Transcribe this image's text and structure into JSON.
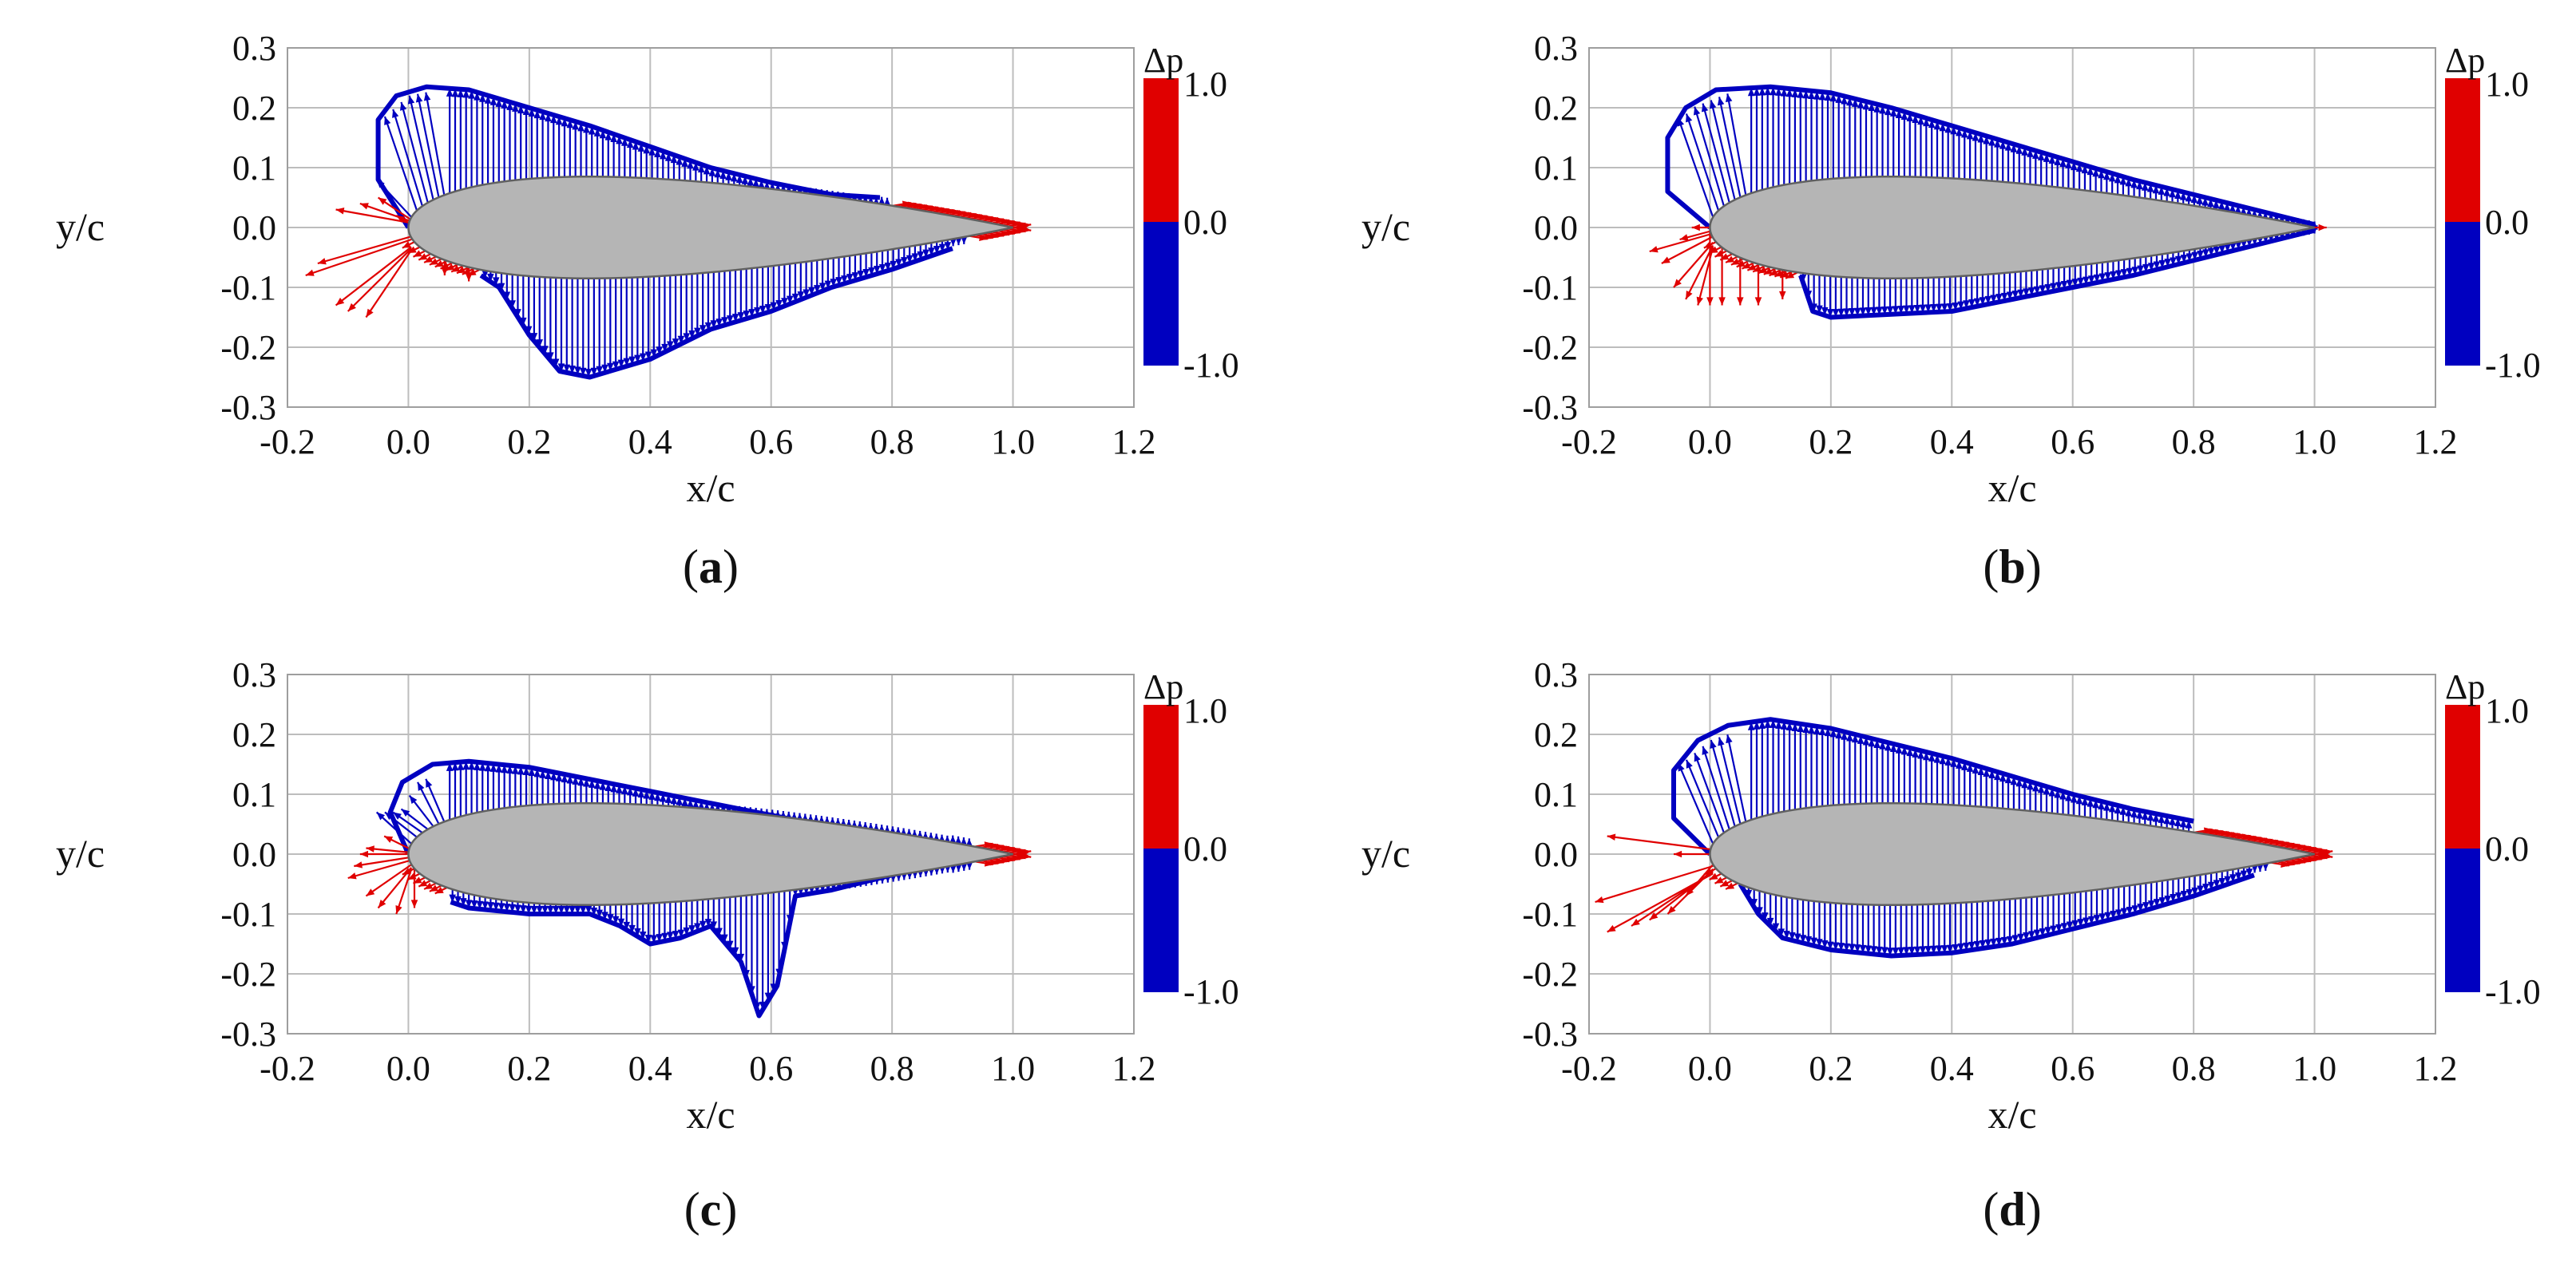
{
  "chart_data": [
    {
      "type": "vector-field",
      "panel_label": "a",
      "xlabel": "x/c",
      "ylabel": "y/c",
      "xlim": [
        -0.2,
        1.2
      ],
      "ylim": [
        -0.3,
        0.3
      ],
      "xticks": [
        "-0.2",
        "0.0",
        "0.2",
        "0.4",
        "0.6",
        "0.8",
        "1.0",
        "1.2"
      ],
      "yticks": [
        "0.3",
        "0.2",
        "0.1",
        "0.0",
        "-0.1",
        "-0.2",
        "-0.3"
      ],
      "grid": true,
      "colorbar": {
        "title": "Δp",
        "max_label": "1.0",
        "mid_label": "0.0",
        "min_label": "-1.0",
        "positive_color": "#e00000",
        "negative_color": "#0000c0"
      },
      "upper_envelope": [
        [
          0.0,
          0.0
        ],
        [
          -0.05,
          0.08
        ],
        [
          -0.05,
          0.18
        ],
        [
          -0.02,
          0.22
        ],
        [
          0.03,
          0.235
        ],
        [
          0.1,
          0.23
        ],
        [
          0.2,
          0.2
        ],
        [
          0.3,
          0.17
        ],
        [
          0.4,
          0.135
        ],
        [
          0.5,
          0.1
        ],
        [
          0.6,
          0.075
        ],
        [
          0.7,
          0.055
        ],
        [
          0.78,
          0.05
        ]
      ],
      "lower_envelope": [
        [
          0.12,
          -0.08
        ],
        [
          0.15,
          -0.1
        ],
        [
          0.2,
          -0.18
        ],
        [
          0.25,
          -0.24
        ],
        [
          0.3,
          -0.25
        ],
        [
          0.4,
          -0.22
        ],
        [
          0.5,
          -0.17
        ],
        [
          0.6,
          -0.14
        ],
        [
          0.7,
          -0.1
        ],
        [
          0.8,
          -0.07
        ],
        [
          0.9,
          -0.035
        ]
      ],
      "positive_zones": {
        "leading_edge_fan": [
          [
            -0.17,
            -0.08
          ],
          [
            -0.15,
            -0.06
          ],
          [
            -0.12,
            -0.13
          ],
          [
            -0.1,
            -0.14
          ],
          [
            -0.07,
            -0.15
          ],
          [
            -0.12,
            0.03
          ],
          [
            -0.08,
            0.04
          ],
          [
            -0.05,
            0.05
          ],
          [
            -0.02,
            0.02
          ],
          [
            0.06,
            -0.08
          ],
          [
            0.1,
            -0.09
          ]
        ],
        "trailing_edge_upper": [
          0.8,
          1.0
        ],
        "trailing_edge_lower": [
          0.92,
          1.0
        ]
      }
    },
    {
      "type": "vector-field",
      "panel_label": "b",
      "xlabel": "x/c",
      "ylabel": "y/c",
      "xlim": [
        -0.2,
        1.2
      ],
      "ylim": [
        -0.3,
        0.3
      ],
      "xticks": [
        "-0.2",
        "0.0",
        "0.2",
        "0.4",
        "0.6",
        "0.8",
        "1.0",
        "1.2"
      ],
      "yticks": [
        "0.3",
        "0.2",
        "0.1",
        "0.0",
        "-0.1",
        "-0.2",
        "-0.3"
      ],
      "grid": true,
      "colorbar": {
        "title": "Δp",
        "max_label": "1.0",
        "mid_label": "0.0",
        "min_label": "-1.0",
        "positive_color": "#e00000",
        "negative_color": "#0000c0"
      },
      "upper_envelope": [
        [
          0.0,
          0.0
        ],
        [
          -0.07,
          0.06
        ],
        [
          -0.07,
          0.15
        ],
        [
          -0.04,
          0.2
        ],
        [
          0.01,
          0.23
        ],
        [
          0.1,
          0.235
        ],
        [
          0.2,
          0.225
        ],
        [
          0.3,
          0.2
        ],
        [
          0.4,
          0.17
        ],
        [
          0.5,
          0.14
        ],
        [
          0.6,
          0.11
        ],
        [
          0.7,
          0.08
        ],
        [
          0.8,
          0.055
        ],
        [
          0.9,
          0.03
        ],
        [
          1.0,
          0.005
        ]
      ],
      "lower_envelope": [
        [
          0.15,
          -0.08
        ],
        [
          0.17,
          -0.14
        ],
        [
          0.2,
          -0.15
        ],
        [
          0.3,
          -0.145
        ],
        [
          0.4,
          -0.14
        ],
        [
          0.5,
          -0.12
        ],
        [
          0.6,
          -0.1
        ],
        [
          0.7,
          -0.08
        ],
        [
          0.8,
          -0.055
        ],
        [
          0.9,
          -0.03
        ],
        [
          1.0,
          -0.005
        ]
      ],
      "positive_zones": {
        "leading_edge_fan": [
          [
            -0.1,
            -0.04
          ],
          [
            -0.08,
            -0.06
          ],
          [
            -0.06,
            -0.1
          ],
          [
            -0.04,
            -0.12
          ],
          [
            -0.02,
            -0.13
          ],
          [
            0.0,
            -0.13
          ],
          [
            0.02,
            -0.13
          ],
          [
            0.05,
            -0.13
          ],
          [
            0.08,
            -0.13
          ],
          [
            0.12,
            -0.12
          ],
          [
            -0.05,
            -0.02
          ],
          [
            -0.03,
            0.0
          ]
        ]
      }
    },
    {
      "type": "vector-field",
      "panel_label": "c",
      "xlabel": "x/c",
      "ylabel": "y/c",
      "xlim": [
        -0.2,
        1.2
      ],
      "ylim": [
        -0.3,
        0.3
      ],
      "xticks": [
        "-0.2",
        "0.0",
        "0.2",
        "0.4",
        "0.6",
        "0.8",
        "1.0",
        "1.2"
      ],
      "yticks": [
        "0.3",
        "0.2",
        "0.1",
        "0.0",
        "-0.1",
        "-0.2",
        "-0.3"
      ],
      "grid": true,
      "colorbar": {
        "title": "Δp",
        "max_label": "1.0",
        "mid_label": "0.0",
        "min_label": "-1.0",
        "positive_color": "#e00000",
        "negative_color": "#0000c0"
      },
      "upper_envelope": [
        [
          0.0,
          0.0
        ],
        [
          -0.03,
          0.07
        ],
        [
          -0.01,
          0.12
        ],
        [
          0.04,
          0.15
        ],
        [
          0.1,
          0.155
        ],
        [
          0.2,
          0.145
        ],
        [
          0.3,
          0.125
        ],
        [
          0.4,
          0.105
        ],
        [
          0.5,
          0.085
        ],
        [
          0.6,
          0.065
        ],
        [
          0.7,
          0.045
        ],
        [
          0.8,
          0.03
        ],
        [
          0.9,
          0.015
        ]
      ],
      "lower_envelope": [
        [
          0.07,
          -0.08
        ],
        [
          0.1,
          -0.09
        ],
        [
          0.2,
          -0.1
        ],
        [
          0.3,
          -0.1
        ],
        [
          0.35,
          -0.12
        ],
        [
          0.4,
          -0.15
        ],
        [
          0.45,
          -0.14
        ],
        [
          0.5,
          -0.12
        ],
        [
          0.55,
          -0.18
        ],
        [
          0.58,
          -0.27
        ],
        [
          0.61,
          -0.22
        ],
        [
          0.64,
          -0.07
        ],
        [
          0.7,
          -0.06
        ],
        [
          0.8,
          -0.035
        ],
        [
          0.9,
          -0.01
        ]
      ],
      "positive_zones": {
        "leading_edge_fan": [
          [
            -0.1,
            -0.04
          ],
          [
            -0.09,
            -0.02
          ],
          [
            -0.08,
            0.0
          ],
          [
            -0.07,
            0.01
          ],
          [
            -0.07,
            -0.07
          ],
          [
            -0.05,
            -0.09
          ],
          [
            -0.02,
            -0.1
          ],
          [
            0.01,
            -0.09
          ],
          [
            -0.04,
            0.03
          ]
        ],
        "trailing_edge_upper": [
          0.93,
          1.0
        ],
        "trailing_edge_lower": [
          0.93,
          1.0
        ]
      }
    },
    {
      "type": "vector-field",
      "panel_label": "d",
      "xlabel": "x/c",
      "ylabel": "y/c",
      "xlim": [
        -0.2,
        1.2
      ],
      "ylim": [
        -0.3,
        0.3
      ],
      "xticks": [
        "-0.2",
        "0.0",
        "0.2",
        "0.4",
        "0.6",
        "0.8",
        "1.0",
        "1.2"
      ],
      "yticks": [
        "0.3",
        "0.2",
        "0.1",
        "0.0",
        "-0.1",
        "-0.2",
        "-0.3"
      ],
      "grid": true,
      "colorbar": {
        "title": "Δp",
        "max_label": "1.0",
        "mid_label": "0.0",
        "min_label": "-1.0",
        "positive_color": "#e00000",
        "negative_color": "#0000c0"
      },
      "upper_envelope": [
        [
          0.0,
          0.0
        ],
        [
          -0.06,
          0.06
        ],
        [
          -0.06,
          0.14
        ],
        [
          -0.02,
          0.19
        ],
        [
          0.03,
          0.215
        ],
        [
          0.1,
          0.225
        ],
        [
          0.2,
          0.21
        ],
        [
          0.3,
          0.185
        ],
        [
          0.4,
          0.16
        ],
        [
          0.5,
          0.13
        ],
        [
          0.6,
          0.1
        ],
        [
          0.7,
          0.075
        ],
        [
          0.8,
          0.055
        ]
      ],
      "lower_envelope": [
        [
          0.05,
          -0.05
        ],
        [
          0.08,
          -0.1
        ],
        [
          0.12,
          -0.14
        ],
        [
          0.2,
          -0.16
        ],
        [
          0.3,
          -0.17
        ],
        [
          0.4,
          -0.165
        ],
        [
          0.5,
          -0.15
        ],
        [
          0.6,
          -0.125
        ],
        [
          0.7,
          -0.1
        ],
        [
          0.8,
          -0.07
        ],
        [
          0.9,
          -0.035
        ]
      ],
      "positive_zones": {
        "leading_edge_fan": [
          [
            -0.17,
            0.03
          ],
          [
            -0.19,
            -0.08
          ],
          [
            -0.17,
            -0.13
          ],
          [
            -0.13,
            -0.12
          ],
          [
            -0.1,
            -0.11
          ],
          [
            -0.07,
            -0.1
          ],
          [
            -0.04,
            -0.07
          ],
          [
            -0.06,
            0.0
          ]
        ],
        "trailing_edge_upper": [
          0.8,
          1.0
        ],
        "trailing_edge_lower": [
          0.92,
          1.0
        ]
      }
    }
  ]
}
